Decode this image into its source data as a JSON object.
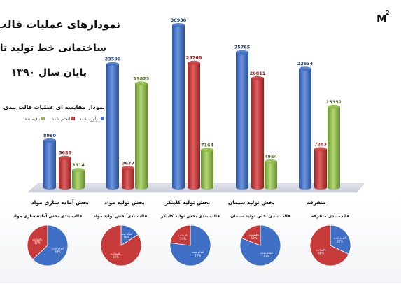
{
  "titles": {
    "line1": "نمودارهای عملیات قالب بندی",
    "line2": "ساختمانی خط تولید تا",
    "line3": "پایان سال ۱۳۹۰"
  },
  "logo_text": "M",
  "logo_sup": "2",
  "chart_data": [
    {
      "type": "bar",
      "title": "نمودار مقایسه ای عملیات قالب بندی",
      "categories": [
        "بخش آماده سازی مواد",
        "بخش تولید مواد",
        "بخش تولید کلینکر",
        "بخش تولید سیمان",
        "متفرقه"
      ],
      "series": [
        {
          "name": "برآورد شده",
          "values": [
            8950,
            23500,
            30930,
            25765,
            22634
          ]
        },
        {
          "name": "انجام شده",
          "values": [
            5636,
            3677,
            23766,
            20811,
            7283
          ]
        },
        {
          "name": "باقیمانده",
          "values": [
            3314,
            19823,
            7164,
            4954,
            15351
          ]
        }
      ],
      "legend": "top-left",
      "colors": {
        "series1": "#3f6fc4",
        "series2": "#c73a3a",
        "series3": "#8dbb45"
      }
    },
    {
      "type": "pie",
      "charts": [
        {
          "title": "قالب بندی بخش آماده سازی مواد",
          "labels": [
            "انجام شده",
            "باقیمانده"
          ],
          "values": [
            63,
            37
          ],
          "value_labels": [
            "63%",
            "37%"
          ]
        },
        {
          "title": "قالبسندی بخش تولید مواد",
          "labels": [
            "انجام شده",
            "باقیمانده"
          ],
          "values": [
            16,
            84
          ],
          "value_labels": [
            "16%",
            "84%"
          ]
        },
        {
          "title": "قالب بندی بخش تولید کلینکر",
          "labels": [
            "انجام شده",
            "باقیمانده"
          ],
          "values": [
            77,
            23
          ],
          "value_labels": [
            "77%",
            "23%"
          ]
        },
        {
          "title": "قالب بندی بخش تولید سیمان",
          "labels": [
            "انجام شده",
            "باقیمانده"
          ],
          "values": [
            81,
            19
          ],
          "value_labels": [
            "81%",
            "19%"
          ]
        },
        {
          "title": "قالب بندی متفرقه",
          "labels": [
            "انجام شده",
            "باقیمانده"
          ],
          "values": [
            32,
            68
          ],
          "value_labels": [
            "32%",
            "68%"
          ]
        }
      ],
      "colors": {
        "done": "#3f6fc4",
        "remaining": "#c73a3a"
      }
    }
  ]
}
